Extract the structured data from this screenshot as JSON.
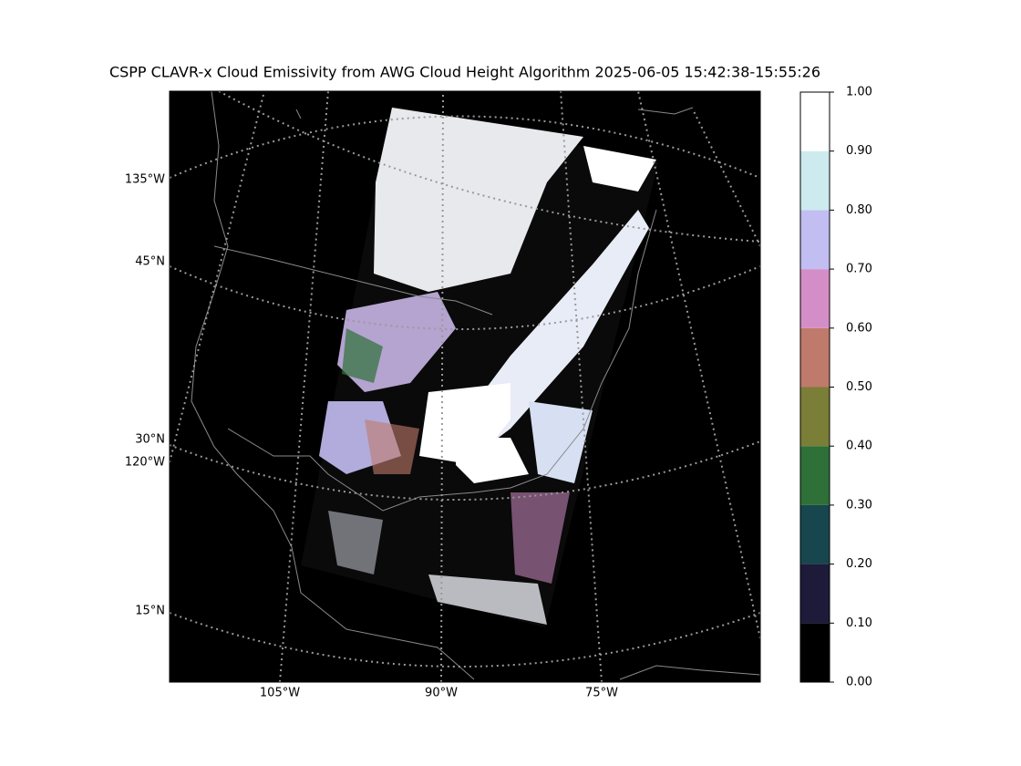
{
  "title": "CSPP CLAVR-x Cloud Emissivity from AWG Cloud Height Algorithm 2025-06-05 15:42:38-15:55:26",
  "map": {
    "left_labels": [
      "135°W",
      "45°N",
      "30°N",
      "120°W",
      "15°N"
    ],
    "bottom_labels": [
      "105°W",
      "90°W",
      "75°W"
    ]
  },
  "colorbar": {
    "ticks": [
      {
        "value": 0,
        "label": "0.00"
      },
      {
        "value": 0.1,
        "label": "0.10"
      },
      {
        "value": 0.2,
        "label": "0.20"
      },
      {
        "value": 0.3,
        "label": "0.30"
      },
      {
        "value": 0.4,
        "label": "0.40"
      },
      {
        "value": 0.5,
        "label": "0.50"
      },
      {
        "value": 0.6,
        "label": "0.60"
      },
      {
        "value": 0.7,
        "label": "0.70"
      },
      {
        "value": 0.8,
        "label": "0.80"
      },
      {
        "value": 0.9,
        "label": "0.90"
      },
      {
        "value": 1,
        "label": "1.00"
      }
    ],
    "colors": [
      "#000000",
      "#1e1a3a",
      "#17464e",
      "#2e7038",
      "#7a7e37",
      "#c07a6b",
      "#d48ec7",
      "#c3bef2",
      "#cdebee",
      "#ffffff"
    ],
    "lim": [
      0,
      1
    ]
  }
}
